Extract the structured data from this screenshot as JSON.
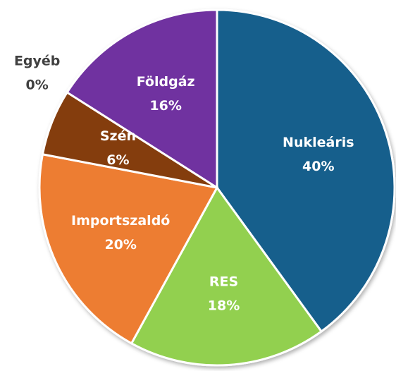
{
  "chart_data": {
    "type": "pie",
    "categories": [
      "Nukleáris",
      "RES",
      "Importszaldó",
      "Szén",
      "Egyéb",
      "Földgáz"
    ],
    "values": [
      40,
      18,
      20,
      6,
      0,
      16
    ],
    "value_labels": [
      "40%",
      "18%",
      "20%",
      "6%",
      "0%",
      "16%"
    ],
    "colors": [
      "#175e8c",
      "#92d050",
      "#ed7d31",
      "#843c0c",
      "#a5a5a5",
      "#7030a0"
    ]
  }
}
